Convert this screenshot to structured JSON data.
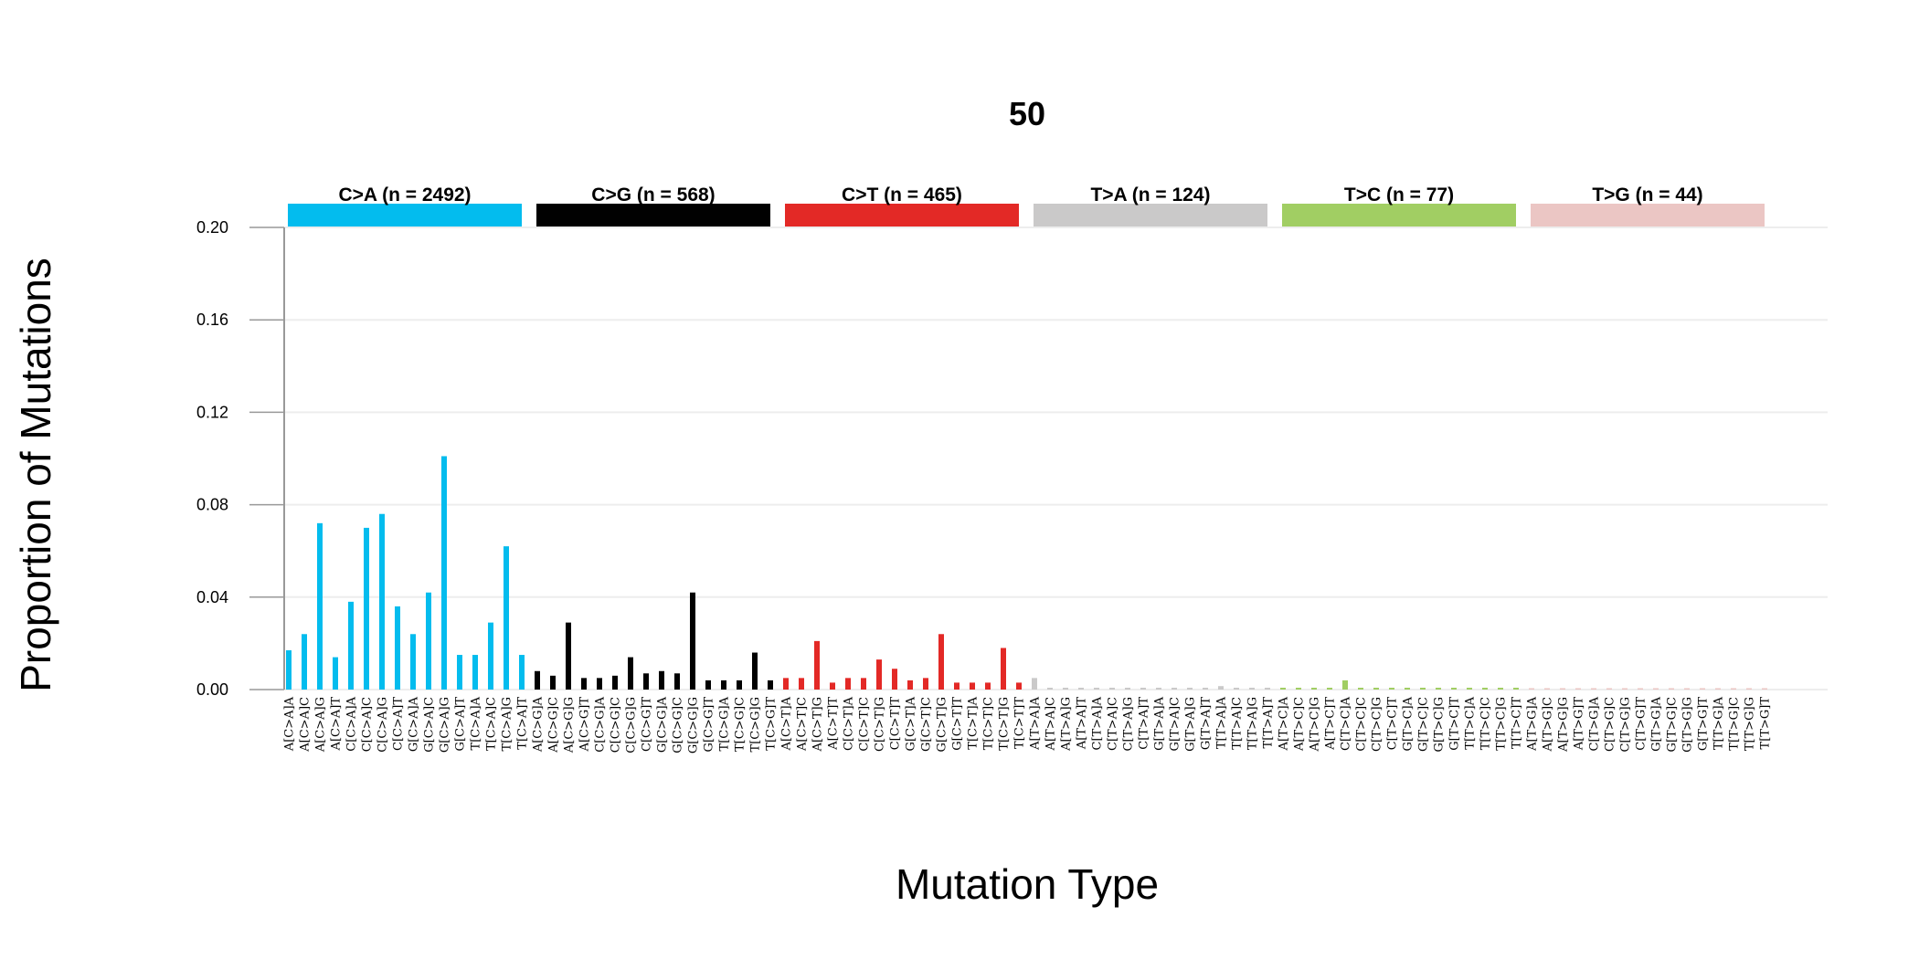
{
  "chart_data": {
    "type": "bar",
    "title": "50",
    "xlabel": "Mutation Type",
    "ylabel": "Proportion of Mutations",
    "ylim": [
      0,
      0.2
    ],
    "yticks": [
      "0.00",
      "0.04",
      "0.08",
      "0.12",
      "0.16",
      "0.20"
    ],
    "grid": true,
    "groups": [
      {
        "label": "C>A (n = 2492)",
        "color": "#03BCEE"
      },
      {
        "label": "C>G (n = 568)",
        "color": "#010101"
      },
      {
        "label": "C>T (n = 465)",
        "color": "#E32926"
      },
      {
        "label": "T>A (n = 124)",
        "color": "#CAC9C9"
      },
      {
        "label": "T>C (n = 77)",
        "color": "#A1CE63"
      },
      {
        "label": "T>G (n = 44)",
        "color": "#EBC6C4"
      }
    ],
    "categories": [
      "A[C>A]A",
      "A[C>A]C",
      "A[C>A]G",
      "A[C>A]T",
      "C[C>A]A",
      "C[C>A]C",
      "C[C>A]G",
      "C[C>A]T",
      "G[C>A]A",
      "G[C>A]C",
      "G[C>A]G",
      "G[C>A]T",
      "T[C>A]A",
      "T[C>A]C",
      "T[C>A]G",
      "T[C>A]T",
      "A[C>G]A",
      "A[C>G]C",
      "A[C>G]G",
      "A[C>G]T",
      "C[C>G]A",
      "C[C>G]C",
      "C[C>G]G",
      "C[C>G]T",
      "G[C>G]A",
      "G[C>G]C",
      "G[C>G]G",
      "G[C>G]T",
      "T[C>G]A",
      "T[C>G]C",
      "T[C>G]G",
      "T[C>G]T",
      "A[C>T]A",
      "A[C>T]C",
      "A[C>T]G",
      "A[C>T]T",
      "C[C>T]A",
      "C[C>T]C",
      "C[C>T]G",
      "C[C>T]T",
      "G[C>T]A",
      "G[C>T]C",
      "G[C>T]G",
      "G[C>T]T",
      "T[C>T]A",
      "T[C>T]C",
      "T[C>T]G",
      "T[C>T]T",
      "A[T>A]A",
      "A[T>A]C",
      "A[T>A]G",
      "A[T>A]T",
      "C[T>A]A",
      "C[T>A]C",
      "C[T>A]G",
      "C[T>A]T",
      "G[T>A]A",
      "G[T>A]C",
      "G[T>A]G",
      "G[T>A]T",
      "T[T>A]A",
      "T[T>A]C",
      "T[T>A]G",
      "T[T>A]T",
      "A[T>C]A",
      "A[T>C]C",
      "A[T>C]G",
      "A[T>C]T",
      "C[T>C]A",
      "C[T>C]C",
      "C[T>C]G",
      "C[T>C]T",
      "G[T>C]A",
      "G[T>C]C",
      "G[T>C]G",
      "G[T>C]T",
      "T[T>C]A",
      "T[T>C]C",
      "T[T>C]G",
      "T[T>C]T",
      "A[T>G]A",
      "A[T>G]C",
      "A[T>G]G",
      "A[T>G]T",
      "C[T>G]A",
      "C[T>G]C",
      "C[T>G]G",
      "C[T>G]T",
      "G[T>G]A",
      "G[T>G]C",
      "G[T>G]G",
      "G[T>G]T",
      "T[T>G]A",
      "T[T>G]C",
      "T[T>G]G",
      "T[T>G]T"
    ],
    "values": [
      0.017,
      0.024,
      0.072,
      0.014,
      0.038,
      0.07,
      0.076,
      0.036,
      0.024,
      0.042,
      0.101,
      0.015,
      0.015,
      0.029,
      0.062,
      0.015,
      0.008,
      0.006,
      0.029,
      0.005,
      0.005,
      0.006,
      0.014,
      0.007,
      0.008,
      0.007,
      0.042,
      0.004,
      0.004,
      0.004,
      0.016,
      0.004,
      0.005,
      0.005,
      0.021,
      0.003,
      0.005,
      0.005,
      0.013,
      0.009,
      0.004,
      0.005,
      0.024,
      0.003,
      0.003,
      0.003,
      0.018,
      0.003,
      0.005,
      0.0008,
      0.0008,
      0.0008,
      0.0008,
      0.0008,
      0.0008,
      0.0008,
      0.0008,
      0.0008,
      0.0008,
      0.0008,
      0.0015,
      0.0008,
      0.0008,
      0.0008,
      0.0008,
      0.0008,
      0.0008,
      0.0008,
      0.004,
      0.0008,
      0.0008,
      0.0008,
      0.0008,
      0.0008,
      0.0008,
      0.0008,
      0.0008,
      0.0008,
      0.0008,
      0.0008,
      0.0006,
      0.0006,
      0.0006,
      0.0006,
      0.0006,
      0.0006,
      0.0006,
      0.0006,
      0.0006,
      0.0006,
      0.0006,
      0.0006,
      0.0006,
      0.0006,
      0.0006,
      0.0006
    ]
  }
}
